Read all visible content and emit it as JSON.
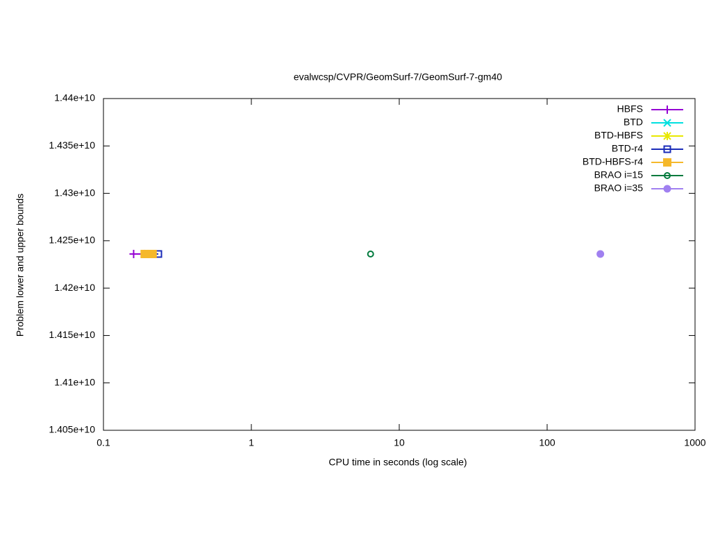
{
  "chart_data": {
    "type": "line",
    "title": "evalwcsp/CVPR/GeomSurf-7/GeomSurf-7-gm40",
    "x_label": "CPU time in seconds (log scale)",
    "y_label": "Problem lower and upper bounds",
    "x_log_scale": true,
    "xlim": [
      0.1,
      1000
    ],
    "xticks": [
      0.1,
      1,
      10,
      100,
      1000
    ],
    "ylim": [
      14050000000,
      14400000000
    ],
    "yticks": [
      {
        "value": 14050000000,
        "label": "1.405e+10"
      },
      {
        "value": 14100000000,
        "label": "1.41e+10"
      },
      {
        "value": 14150000000,
        "label": "1.415e+10"
      },
      {
        "value": 14200000000,
        "label": "1.42e+10"
      },
      {
        "value": 14250000000,
        "label": "1.425e+10"
      },
      {
        "value": 14300000000,
        "label": "1.43e+10"
      },
      {
        "value": 14350000000,
        "label": "1.435e+10"
      },
      {
        "value": 14400000000,
        "label": "1.44e+10"
      }
    ],
    "legend": "top-right",
    "series": [
      {
        "name": "HBFS",
        "color": "#9400d3",
        "marker": "plus",
        "x": [
          0.16,
          0.19
        ],
        "values": [
          14236000000,
          14236000000
        ]
      },
      {
        "name": "BTD",
        "color": "#00e0e0",
        "marker": "cross",
        "x": [
          0.19,
          0.2
        ],
        "values": [
          14236000000,
          14236000000
        ]
      },
      {
        "name": "BTD-HBFS",
        "color": "#e8e800",
        "marker": "star",
        "x": [
          0.19,
          0.2
        ],
        "values": [
          14236000000,
          14236000000
        ]
      },
      {
        "name": "BTD-r4",
        "color": "#1a2bb8",
        "marker": "open-square",
        "x": [
          0.2,
          0.235
        ],
        "values": [
          14236000000,
          14236000000
        ]
      },
      {
        "name": "BTD-HBFS-r4",
        "color": "#f5b82a",
        "marker": "filled-square",
        "x": [
          0.19,
          0.215
        ],
        "values": [
          14236000000,
          14236000000
        ]
      },
      {
        "name": "BRAO i=15",
        "color": "#007a3d",
        "marker": "dot-circle",
        "x": [
          6.4
        ],
        "values": [
          14236000000
        ]
      },
      {
        "name": "BRAO i=35",
        "color": "#a080f0",
        "marker": "filled-circle",
        "x": [
          229
        ],
        "values": [
          14236000000
        ]
      }
    ]
  }
}
